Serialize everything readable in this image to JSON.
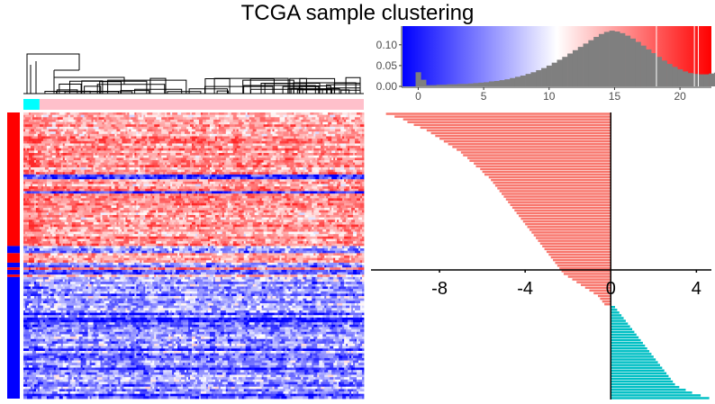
{
  "title": "TCGA sample clustering",
  "colors": {
    "low": "#0000ff",
    "mid": "#ffffff",
    "high": "#ff0000",
    "hist_bar": "#7f7f7f",
    "cluster_cyan": "#00ffff",
    "cluster_pink": "#ffc0cb",
    "row_up": "#ff0000",
    "row_down": "#0000ff",
    "bar_salmon": "#f8766d",
    "bar_teal": "#00bfc4"
  },
  "chart_data": [
    {
      "type": "heatmap",
      "description_free": true,
      "rows": 120,
      "columns": 190,
      "column_clusters": [
        {
          "color_key": "cluster_cyan",
          "count": 9
        },
        {
          "color_key": "cluster_pink",
          "count": 181
        }
      ],
      "row_annotation": [
        {
          "color_key": "row_up",
          "count": 56
        },
        {
          "color_key": "row_down",
          "count": 3
        },
        {
          "color_key": "row_up",
          "count": 4
        },
        {
          "color_key": "row_down",
          "count": 2
        },
        {
          "color_key": "row_up",
          "count": 1
        },
        {
          "color_key": "row_down",
          "count": 2
        },
        {
          "color_key": "row_up",
          "count": 1
        },
        {
          "color_key": "row_down",
          "count": 51
        }
      ],
      "color_scale": [
        "low",
        "mid",
        "high"
      ],
      "dendrogram": "top"
    },
    {
      "type": "bar",
      "role": "histogram",
      "x_ticks": [
        "0",
        "5",
        "10",
        "15",
        "20"
      ],
      "y_ticks": [
        "0.00",
        "0.05",
        "0.10"
      ],
      "xlim": [
        -1.2,
        22.4
      ],
      "ylim": [
        0,
        0.145
      ],
      "bin_width": 0.4,
      "bin_start": -0.2,
      "values": [
        0.034,
        0.016,
        0.003,
        0.003,
        0.004,
        0.004,
        0.005,
        0.005,
        0.006,
        0.006,
        0.007,
        0.008,
        0.009,
        0.01,
        0.012,
        0.013,
        0.015,
        0.017,
        0.02,
        0.023,
        0.026,
        0.03,
        0.034,
        0.039,
        0.044,
        0.05,
        0.057,
        0.064,
        0.071,
        0.079,
        0.087,
        0.095,
        0.103,
        0.111,
        0.119,
        0.126,
        0.131,
        0.134,
        0.132,
        0.128,
        0.122,
        0.115,
        0.107,
        0.098,
        0.089,
        0.08,
        0.071,
        0.062,
        0.054,
        0.047,
        0.041,
        0.036,
        0.032,
        0.03,
        0.029,
        0.029,
        0.031,
        0.033,
        0.035,
        0.035,
        0.034,
        0.031,
        0.027,
        0.023,
        0.019,
        0.015,
        0.012,
        0.009,
        0.006,
        0.004,
        0.003,
        0.002,
        0.001,
        0.001,
        0.001,
        0.001,
        0.001,
        0.001,
        0.001
      ],
      "marker_lines": [
        18.2,
        21.1,
        21.4
      ]
    },
    {
      "type": "bar",
      "orientation": "horizontal",
      "x_ticks": [
        "-8",
        "-4",
        "0",
        "4"
      ],
      "xlim": [
        -11.2,
        4.7
      ],
      "values": [
        -10.5,
        -10.1,
        -9.7,
        -9.5,
        -9.2,
        -8.9,
        -8.6,
        -8.4,
        -8.2,
        -8.0,
        -7.8,
        -7.6,
        -7.4,
        -7.2,
        -7.0,
        -6.9,
        -6.7,
        -6.6,
        -6.4,
        -6.3,
        -6.1,
        -6.0,
        -5.9,
        -5.7,
        -5.6,
        -5.5,
        -5.4,
        -5.3,
        -5.2,
        -5.1,
        -5.0,
        -4.9,
        -4.8,
        -4.7,
        -4.6,
        -4.5,
        -4.4,
        -4.3,
        -4.2,
        -4.1,
        -4.0,
        -3.9,
        -3.8,
        -3.7,
        -3.6,
        -3.5,
        -3.4,
        -3.3,
        -3.2,
        -3.1,
        -3.0,
        -2.9,
        -2.8,
        -2.7,
        -2.6,
        -2.5,
        -2.4,
        -2.3,
        -2.2,
        -2.0,
        -1.8,
        -1.6,
        -1.4,
        -1.2,
        -1.0,
        -0.8,
        -0.6,
        -0.5,
        -0.4,
        -0.3,
        0.2,
        0.3,
        0.4,
        0.5,
        0.6,
        0.7,
        0.8,
        0.9,
        1.0,
        1.1,
        1.2,
        1.3,
        1.4,
        1.5,
        1.6,
        1.7,
        1.8,
        1.9,
        2.0,
        2.1,
        2.2,
        2.3,
        2.4,
        2.5,
        2.6,
        2.7,
        2.8,
        2.9,
        3.0,
        3.2,
        3.5,
        3.8,
        4.2,
        4.6
      ]
    }
  ]
}
